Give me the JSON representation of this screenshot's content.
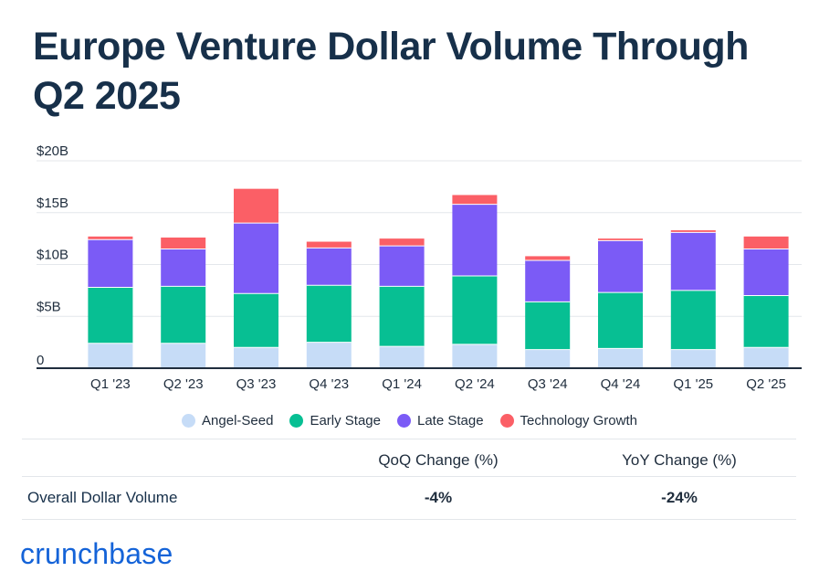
{
  "title": "Europe Venture Dollar Volume Through Q2 2025",
  "chart_data": {
    "type": "bar",
    "stacked": true,
    "categories": [
      "Q1 '23",
      "Q2 '23",
      "Q3 '23",
      "Q4 '23",
      "Q1 '24",
      "Q2 '24",
      "Q3 '24",
      "Q4 '24",
      "Q1 '25",
      "Q2 '25"
    ],
    "series": [
      {
        "name": "Angel-Seed",
        "color": "#c6dcf7",
        "values": [
          2.4,
          2.4,
          2.0,
          2.5,
          2.1,
          2.3,
          1.8,
          1.9,
          1.8,
          2.0
        ]
      },
      {
        "name": "Early Stage",
        "color": "#07bf93",
        "values": [
          5.4,
          5.5,
          5.2,
          5.5,
          5.8,
          6.6,
          4.6,
          5.4,
          5.7,
          5.0
        ]
      },
      {
        "name": "Late Stage",
        "color": "#7b5bf6",
        "values": [
          4.6,
          3.6,
          6.8,
          3.6,
          3.9,
          6.9,
          4.0,
          5.0,
          5.6,
          4.5
        ]
      },
      {
        "name": "Technology Growth",
        "color": "#fb5f66",
        "values": [
          0.3,
          1.1,
          3.3,
          0.6,
          0.7,
          0.9,
          0.4,
          0.2,
          0.2,
          1.2
        ]
      }
    ],
    "yticks": [
      "0",
      "$5B",
      "$10B",
      "$15B",
      "$20B"
    ],
    "ylim": [
      0,
      20
    ],
    "grid": true,
    "legend_position": "bottom"
  },
  "stats": {
    "col_qoq": "QoQ Change (%)",
    "col_yoy": "YoY Change (%)",
    "row_label": "Overall Dollar Volume",
    "qoq_value": "-4%",
    "yoy_value": "-24%"
  },
  "brand": {
    "logo_text": "crunchbase",
    "color": "#1463d8"
  }
}
